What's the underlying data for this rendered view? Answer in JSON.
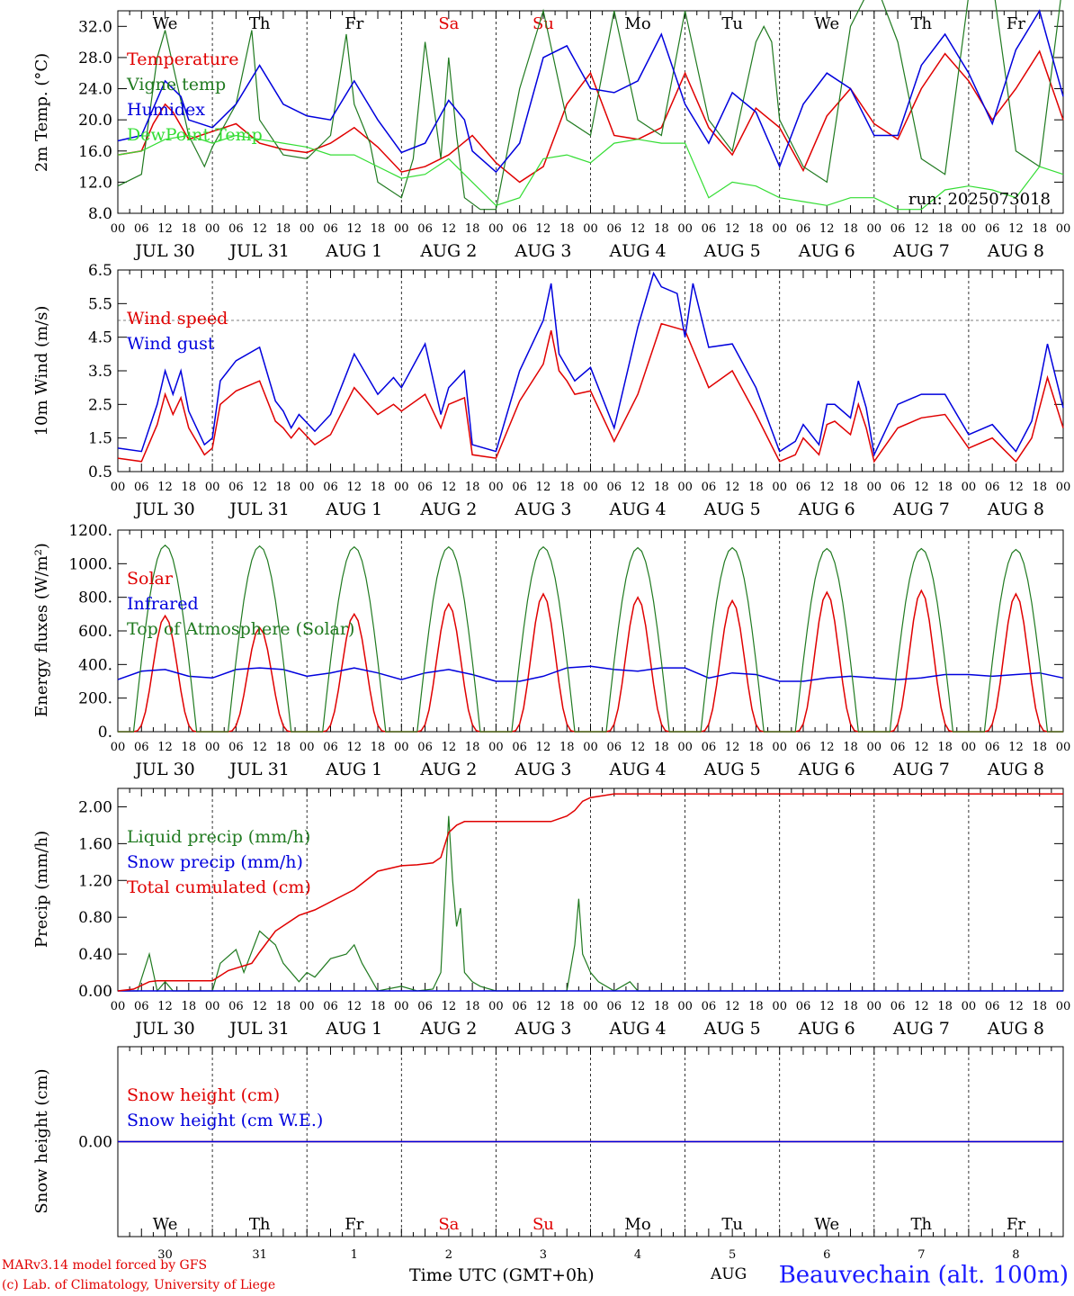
{
  "timeline": {
    "date_labels": [
      "JUL 30",
      "JUL 31",
      "AUG  1",
      "AUG  2",
      "AUG  3",
      "AUG  4",
      "AUG  5",
      "AUG  6",
      "AUG  7",
      "AUG  8"
    ],
    "hour_labels": [
      "00",
      "06",
      "12",
      "18"
    ],
    "end_hour_label": "00",
    "weekdays": [
      "We",
      "Th",
      "Fr",
      "Sa",
      "Su",
      "Mo",
      "Tu",
      "We",
      "Th",
      "Fr"
    ],
    "weekday_colors": [
      "#000000",
      "#000000",
      "#000000",
      "#e00000",
      "#e00000",
      "#000000",
      "#000000",
      "#000000",
      "#000000",
      "#000000"
    ],
    "day_numbers": [
      "30",
      "31",
      "1",
      "2",
      "3",
      "4",
      "5",
      "6",
      "7",
      "8"
    ]
  },
  "footer": {
    "model": "MARv3.14 model forced by GFS",
    "copyright": "(c) Lab. of Climatology, University of Liege",
    "xlabel": "Time UTC (GMT+0h)",
    "station": "Beauvechain (alt. 100m)",
    "aug_fragment": "AUG"
  },
  "chart_data": [
    {
      "type": "line",
      "ylabel": "2m Temp. (°C)",
      "ylim": [
        8,
        34
      ],
      "yticks": [
        8.0,
        12.0,
        16.0,
        20.0,
        24.0,
        28.0,
        32.0
      ],
      "tick_decimals": 1,
      "annotation": "run: 2025073018",
      "legend_placement": "left",
      "series": [
        {
          "name": "Temperature",
          "color": "#e00000",
          "x": [
            0,
            6,
            9,
            12,
            14,
            18,
            24,
            30,
            36,
            42,
            48,
            54,
            60,
            66,
            72,
            78,
            84,
            90,
            96,
            102,
            108,
            114,
            120,
            126,
            132,
            138,
            144,
            150,
            156,
            162,
            168,
            174,
            180,
            186,
            192,
            198,
            204,
            210,
            216,
            222,
            228,
            234,
            240
          ],
          "y": [
            15.5,
            16,
            19.5,
            22,
            21,
            17.5,
            18.5,
            19.5,
            17,
            16.2,
            15.8,
            17,
            19,
            16.5,
            13.3,
            14,
            15.5,
            18,
            14.5,
            12,
            14,
            22,
            26,
            18,
            17.5,
            19,
            26,
            19,
            15.5,
            21.5,
            19,
            13.5,
            20.5,
            24,
            19.5,
            17.5,
            24,
            28.5,
            25,
            20,
            24,
            28.8,
            20
          ]
        },
        {
          "name": "Vigne temp",
          "color": "#207a20",
          "x": [
            0,
            6,
            10,
            12,
            14,
            18,
            22,
            24,
            30,
            34,
            36,
            42,
            48,
            54,
            58,
            60,
            64,
            66,
            72,
            75,
            78,
            82,
            84,
            86,
            88,
            92,
            96,
            102,
            108,
            114,
            120,
            126,
            132,
            138,
            144,
            150,
            156,
            162,
            164,
            166,
            168,
            174,
            180,
            186,
            192,
            198,
            204,
            210,
            216,
            222,
            228,
            234,
            240
          ],
          "y": [
            11.5,
            13,
            28,
            31.5,
            27,
            18,
            14,
            16.5,
            22,
            31.5,
            20,
            15.5,
            15,
            18,
            31,
            22,
            17,
            12,
            10,
            15,
            30,
            15,
            28,
            18,
            10,
            8.5,
            8.5,
            24,
            34,
            20,
            18,
            34,
            20,
            18,
            34,
            20,
            16,
            30,
            32,
            30,
            20,
            14,
            12,
            32,
            38,
            30,
            15,
            13,
            36,
            38,
            16,
            14,
            38
          ]
        },
        {
          "name": "Humidex",
          "color": "#0000dd",
          "x": [
            0,
            6,
            12,
            16,
            18,
            24,
            30,
            36,
            42,
            48,
            54,
            60,
            66,
            72,
            78,
            84,
            88,
            90,
            96,
            102,
            108,
            114,
            120,
            126,
            132,
            138,
            144,
            150,
            156,
            162,
            168,
            174,
            180,
            186,
            192,
            198,
            204,
            210,
            216,
            222,
            228,
            234,
            240
          ],
          "y": [
            17.3,
            18,
            25,
            23,
            20,
            19,
            22,
            27,
            22,
            20.5,
            20,
            25,
            20,
            15.8,
            17,
            22.5,
            20,
            16,
            13.3,
            17,
            28,
            29.5,
            24,
            23.5,
            25,
            31,
            22,
            17,
            23.5,
            21,
            14,
            22,
            26,
            24,
            18,
            18,
            27,
            31,
            26,
            19.5,
            29,
            34,
            23
          ]
        },
        {
          "name": "DewPoint Temp",
          "color": "#33dd33",
          "x": [
            0,
            6,
            12,
            18,
            24,
            30,
            36,
            42,
            48,
            54,
            60,
            66,
            72,
            78,
            84,
            90,
            96,
            102,
            108,
            114,
            120,
            126,
            132,
            138,
            144,
            150,
            156,
            162,
            168,
            174,
            180,
            186,
            192,
            198,
            204,
            210,
            216,
            222,
            228,
            234,
            240
          ],
          "y": [
            15.5,
            16,
            17.5,
            18,
            17,
            18,
            17.5,
            17,
            16.5,
            15.5,
            15.5,
            14,
            12.5,
            13,
            15,
            12,
            9,
            10,
            15,
            15.5,
            14.5,
            17,
            17.5,
            17,
            17,
            10,
            12,
            11.5,
            10,
            9.5,
            9,
            10,
            10,
            8.5,
            8.5,
            11,
            11.5,
            11,
            10,
            14,
            13
          ]
        }
      ]
    },
    {
      "type": "line",
      "ylabel": "10m Wind (m/s)",
      "ylim": [
        0.5,
        6.5
      ],
      "yticks": [
        0.5,
        1.5,
        2.5,
        3.5,
        4.5,
        5.5,
        6.5
      ],
      "tick_decimals": 1,
      "reference_line": 5.0,
      "legend_placement": "left",
      "series": [
        {
          "name": "Wind speed",
          "color": "#e00000",
          "x": [
            0,
            6,
            10,
            12,
            14,
            16,
            18,
            22,
            24,
            26,
            30,
            36,
            40,
            42,
            44,
            46,
            50,
            54,
            60,
            66,
            70,
            72,
            78,
            82,
            84,
            88,
            90,
            96,
            102,
            108,
            110,
            112,
            114,
            116,
            120,
            126,
            132,
            138,
            144,
            150,
            156,
            162,
            168,
            172,
            174,
            178,
            180,
            182,
            186,
            188,
            190,
            192,
            198,
            204,
            210,
            216,
            222,
            228,
            232,
            234,
            236,
            240
          ],
          "y": [
            0.9,
            0.8,
            1.9,
            2.8,
            2.2,
            2.7,
            1.8,
            1.0,
            1.2,
            2.5,
            2.9,
            3.2,
            2.0,
            1.8,
            1.5,
            1.8,
            1.3,
            1.6,
            3.0,
            2.2,
            2.5,
            2.3,
            2.8,
            1.8,
            2.5,
            2.7,
            1.0,
            0.9,
            2.6,
            3.7,
            4.7,
            3.5,
            3.2,
            2.8,
            2.9,
            1.4,
            2.8,
            4.9,
            4.7,
            3.0,
            3.5,
            2.2,
            0.8,
            1.0,
            1.5,
            1.0,
            1.9,
            2.0,
            1.6,
            2.5,
            1.8,
            0.8,
            1.8,
            2.1,
            2.2,
            1.2,
            1.5,
            0.8,
            1.5,
            2.4,
            3.3,
            1.8
          ]
        },
        {
          "name": "Wind gust",
          "color": "#0000dd",
          "x": [
            0,
            6,
            10,
            12,
            14,
            16,
            18,
            22,
            24,
            26,
            30,
            36,
            40,
            42,
            44,
            46,
            50,
            54,
            60,
            66,
            70,
            72,
            78,
            82,
            84,
            88,
            90,
            96,
            102,
            108,
            110,
            112,
            114,
            116,
            120,
            126,
            132,
            136,
            138,
            142,
            144,
            146,
            150,
            156,
            162,
            168,
            172,
            174,
            178,
            180,
            182,
            186,
            188,
            190,
            192,
            198,
            204,
            210,
            216,
            222,
            228,
            232,
            234,
            236,
            240
          ],
          "y": [
            1.2,
            1.1,
            2.5,
            3.5,
            2.8,
            3.5,
            2.3,
            1.3,
            1.5,
            3.2,
            3.8,
            4.2,
            2.6,
            2.3,
            1.8,
            2.2,
            1.7,
            2.2,
            4.0,
            2.8,
            3.3,
            3.0,
            4.3,
            2.2,
            3.0,
            3.5,
            1.3,
            1.1,
            3.5,
            5.0,
            6.1,
            4.0,
            3.6,
            3.2,
            3.6,
            1.8,
            4.8,
            6.4,
            6.0,
            5.8,
            4.5,
            6.1,
            4.2,
            4.3,
            3.0,
            1.1,
            1.4,
            1.9,
            1.3,
            2.5,
            2.5,
            2.1,
            3.2,
            2.4,
            1.0,
            2.5,
            2.8,
            2.8,
            1.6,
            1.9,
            1.1,
            2.0,
            3.1,
            4.3,
            2.4
          ]
        }
      ]
    },
    {
      "type": "line",
      "ylabel": "Energy fluxes (W/m²)",
      "ylim": [
        0,
        1200
      ],
      "yticks": [
        0,
        200,
        400,
        600,
        800,
        1000,
        1200
      ],
      "tick_decimals": 0,
      "tick_suffix": ".",
      "legend_placement": "left",
      "toa_peaks": [
        1110,
        1105,
        1100,
        1100,
        1100,
        1095,
        1095,
        1090,
        1090,
        1085
      ],
      "solar_peaks": [
        690,
        620,
        700,
        760,
        820,
        800,
        780,
        830,
        840,
        820
      ],
      "series": [
        {
          "name": "Solar",
          "color": "#e00000"
        },
        {
          "name": "Infrared",
          "color": "#0000dd",
          "x": [
            0,
            6,
            12,
            18,
            24,
            30,
            36,
            42,
            48,
            54,
            60,
            66,
            72,
            78,
            84,
            90,
            96,
            102,
            108,
            114,
            120,
            126,
            132,
            138,
            144,
            150,
            156,
            162,
            168,
            174,
            180,
            186,
            192,
            198,
            204,
            210,
            216,
            222,
            228,
            234,
            240
          ],
          "y": [
            310,
            360,
            370,
            330,
            320,
            370,
            380,
            370,
            330,
            350,
            380,
            350,
            310,
            350,
            370,
            340,
            300,
            300,
            330,
            380,
            390,
            370,
            360,
            380,
            380,
            320,
            350,
            340,
            300,
            300,
            320,
            330,
            320,
            310,
            320,
            340,
            340,
            330,
            340,
            350,
            320
          ]
        },
        {
          "name": "Top of Atmosphere (Solar)",
          "color": "#207a20"
        }
      ]
    },
    {
      "type": "line",
      "ylabel": "Precip (mm/h)",
      "ylim": [
        0,
        2.2
      ],
      "yticks": [
        0.0,
        0.4,
        0.8,
        1.2,
        1.6,
        2.0
      ],
      "tick_decimals": 2,
      "legend_placement": "left",
      "series": [
        {
          "name": "Liquid precip (mm/h)",
          "color": "#207a20",
          "x": [
            0,
            5,
            8,
            10,
            12,
            14,
            18,
            24,
            26,
            30,
            32,
            36,
            40,
            42,
            46,
            48,
            50,
            54,
            58,
            60,
            62,
            64,
            66,
            72,
            76,
            80,
            82,
            84,
            85,
            86,
            87,
            88,
            90,
            92,
            96,
            102,
            114,
            116,
            117,
            118,
            119,
            120,
            122,
            126,
            130,
            132,
            136,
            240
          ],
          "y": [
            0,
            0,
            0.4,
            0,
            0.1,
            0,
            0,
            0,
            0.3,
            0.45,
            0.2,
            0.65,
            0.5,
            0.3,
            0.1,
            0.2,
            0.15,
            0.35,
            0.4,
            0.5,
            0.3,
            0.15,
            0,
            0.05,
            0,
            0.02,
            0.2,
            1.9,
            1.2,
            0.7,
            0.9,
            0.2,
            0.1,
            0.05,
            0,
            0,
            0,
            0.5,
            1.0,
            0.4,
            0.3,
            0.2,
            0.1,
            0,
            0.1,
            0,
            0,
            0
          ]
        },
        {
          "name": "Snow precip (mm/h)",
          "color": "#0000dd",
          "x": [
            0,
            240
          ],
          "y": [
            0,
            0
          ]
        },
        {
          "name": "Total cumulated (cm)",
          "color": "#e00000",
          "x": [
            0,
            4,
            8,
            10,
            24,
            28,
            34,
            36,
            40,
            46,
            50,
            60,
            66,
            72,
            76,
            80,
            82,
            84,
            86,
            88,
            96,
            110,
            114,
            116,
            118,
            120,
            126,
            240
          ],
          "y": [
            0,
            0.02,
            0.1,
            0.11,
            0.11,
            0.22,
            0.3,
            0.42,
            0.65,
            0.82,
            0.88,
            1.1,
            1.3,
            1.36,
            1.37,
            1.39,
            1.45,
            1.72,
            1.8,
            1.84,
            1.84,
            1.84,
            1.9,
            1.96,
            2.06,
            2.1,
            2.14,
            2.14
          ]
        }
      ]
    },
    {
      "type": "line",
      "ylabel": "Snow height (cm)",
      "ylim": [
        -1,
        1
      ],
      "yticks": [
        0.0
      ],
      "tick_decimals": 2,
      "legend_placement": "left",
      "series": [
        {
          "name": "Snow height (cm)",
          "color": "#e00000",
          "x": [
            0,
            240
          ],
          "y": [
            0,
            0
          ]
        },
        {
          "name": "Snow height (cm W.E.)",
          "color": "#0000dd",
          "x": [
            0,
            240
          ],
          "y": [
            0,
            0
          ]
        }
      ]
    }
  ]
}
